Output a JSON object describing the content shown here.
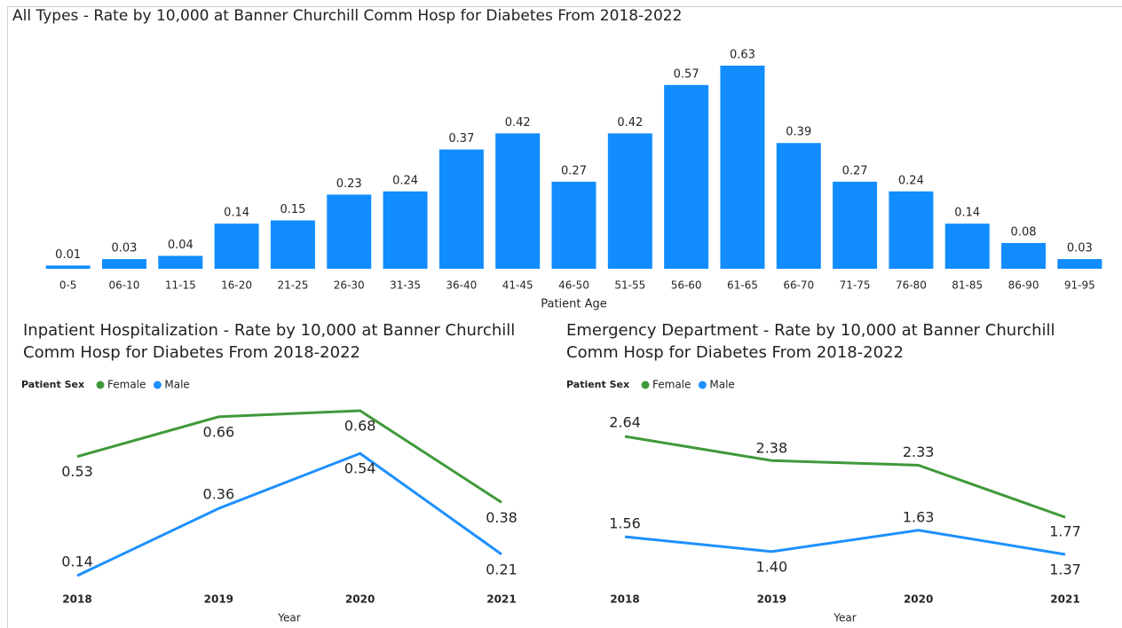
{
  "chart_data": [
    {
      "type": "bar",
      "title": "All Types - Rate by 10,000 at Banner Churchill Comm Hosp for Diabetes From 2018-2022",
      "x_label": "Patient Age",
      "categories": [
        "0-5",
        "06-10",
        "11-15",
        "16-20",
        "21-25",
        "26-30",
        "31-35",
        "36-40",
        "41-45",
        "46-50",
        "51-55",
        "56-60",
        "61-65",
        "66-70",
        "71-75",
        "76-80",
        "81-85",
        "86-90",
        "91-95"
      ],
      "values": [
        0.01,
        0.03,
        0.04,
        0.14,
        0.15,
        0.23,
        0.24,
        0.37,
        0.42,
        0.27,
        0.42,
        0.57,
        0.63,
        0.39,
        0.27,
        0.24,
        0.14,
        0.08,
        0.03
      ],
      "color": "#118dff"
    },
    {
      "type": "line",
      "title": "Inpatient Hospitalization - Rate by 10,000 at Banner Churchill Comm Hosp for Diabetes From 2018-2022",
      "legend_title": "Patient Sex",
      "x_label": "Year",
      "x": [
        2018,
        2019,
        2020,
        2021
      ],
      "series": [
        {
          "name": "Female",
          "color": "#3f993a",
          "values": [
            0.53,
            0.66,
            0.68,
            0.38
          ]
        },
        {
          "name": "Male",
          "color": "#1e90ff",
          "values": [
            0.14,
            0.36,
            0.54,
            0.21
          ]
        }
      ]
    },
    {
      "type": "line",
      "title": "Emergency Department - Rate by 10,000 at Banner Churchill Comm Hosp for Diabetes From 2018-2022",
      "legend_title": "Patient Sex",
      "x_label": "Year",
      "x": [
        2018,
        2019,
        2020,
        2021
      ],
      "series": [
        {
          "name": "Female",
          "color": "#3f993a",
          "values": [
            2.64,
            2.38,
            2.33,
            1.77
          ]
        },
        {
          "name": "Male",
          "color": "#1e90ff",
          "values": [
            1.56,
            1.4,
            1.63,
            1.37
          ],
          "value_labels": [
            "1.56",
            "1.40",
            "1.63",
            "1.37"
          ]
        }
      ]
    }
  ]
}
